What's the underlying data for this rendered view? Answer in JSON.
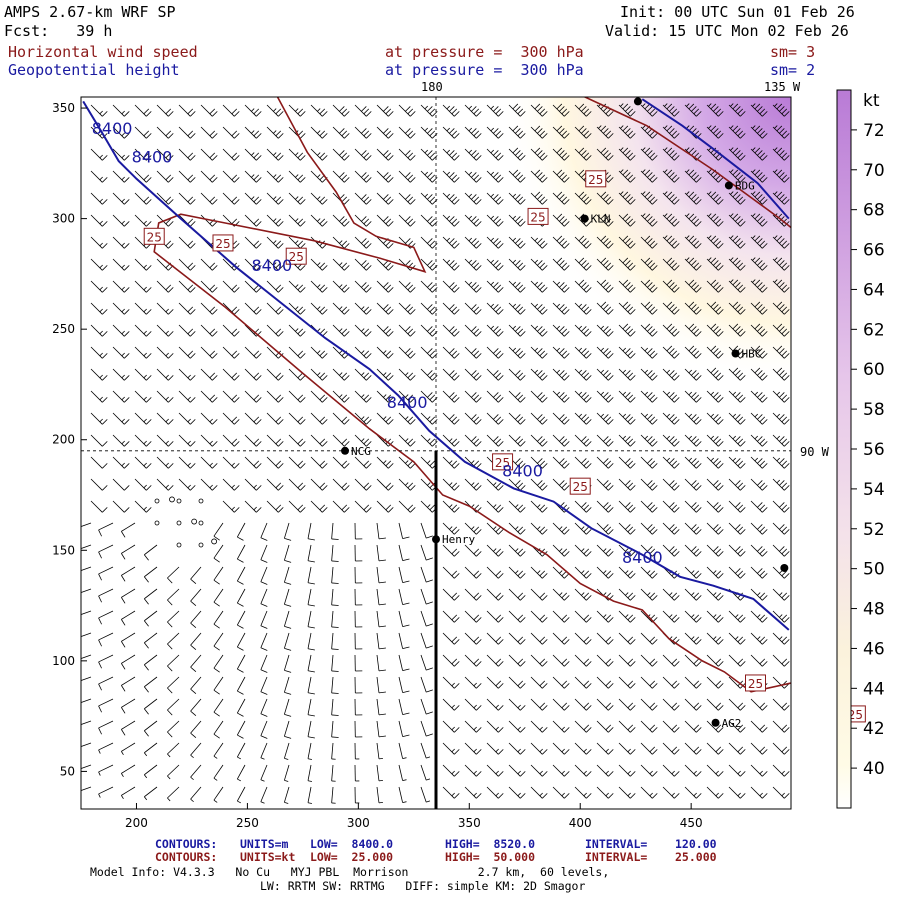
{
  "header": {
    "model_title": "AMPS 2.67-km WRF SP",
    "forecast": "Fcst:   39 h",
    "init": "Init: 00 UTC Sun 01 Feb 26",
    "valid": "Valid: 15 UTC Mon 02 Feb 26",
    "field1_name": "Horizontal wind speed",
    "field1_level": "at pressure =  300 hPa",
    "field1_sm": "sm= 3",
    "field2_name": "Geopotential height",
    "field2_level": "at pressure =  300 hPa",
    "field2_sm": "sm= 2"
  },
  "colors": {
    "wind_contour": "#8b1a1a",
    "height_contour": "#1a1aa0",
    "barbs": "#000000",
    "colorbar_low": "#fffbe6",
    "colorbar_high": "#b97bd6"
  },
  "map_labels": {
    "lon_180": "180",
    "lon_135w": "135 W",
    "lon_90w": "90 W"
  },
  "chart_data": {
    "type": "contour",
    "title": "Horizontal wind speed / Geopotential height at 300 hPa",
    "xlim": [
      175,
      495
    ],
    "ylim": [
      33,
      355
    ],
    "x_ticks": [
      200,
      250,
      300,
      350,
      400,
      450
    ],
    "y_ticks": [
      50,
      100,
      150,
      200,
      250,
      300,
      350
    ],
    "colorbar": {
      "unit": "kt",
      "min": 38,
      "max": 74,
      "ticks": [
        40,
        42,
        44,
        46,
        48,
        50,
        52,
        54,
        56,
        58,
        60,
        62,
        64,
        66,
        68,
        70,
        72
      ]
    },
    "wind_contour_label": "25",
    "wind_contours": [
      {
        "level": 25,
        "points": [
          [
            262,
            358
          ],
          [
            277,
            330
          ],
          [
            290,
            312
          ],
          [
            298,
            298
          ],
          [
            308,
            292
          ],
          [
            325,
            287
          ],
          [
            330,
            276
          ],
          [
            310,
            282
          ],
          [
            280,
            290
          ],
          [
            240,
            298
          ],
          [
            220,
            302
          ],
          [
            210,
            298
          ],
          [
            208,
            285
          ],
          [
            240,
            260
          ],
          [
            275,
            230
          ],
          [
            305,
            205
          ],
          [
            325,
            190
          ],
          [
            338,
            175
          ],
          [
            350,
            170
          ],
          [
            368,
            158
          ],
          [
            385,
            148
          ],
          [
            400,
            135
          ],
          [
            415,
            127
          ],
          [
            428,
            123
          ],
          [
            440,
            110
          ],
          [
            455,
            100
          ],
          [
            465,
            95
          ],
          [
            477,
            86
          ],
          [
            495,
            90
          ]
        ]
      },
      {
        "level": 25,
        "points": [
          [
            400,
            356
          ],
          [
            430,
            342
          ],
          [
            460,
            322
          ],
          [
            490,
            300
          ],
          [
            495,
            296
          ]
        ]
      }
    ],
    "wind_contour_label_positions": [
      [
        208,
        292
      ],
      [
        239,
        289
      ],
      [
        272,
        283
      ],
      [
        365,
        190
      ],
      [
        381,
        301
      ],
      [
        400,
        179
      ],
      [
        407,
        318
      ],
      [
        479,
        90
      ],
      [
        524,
        76
      ]
    ],
    "height_contour_label": "8400",
    "height_contours": [
      {
        "level": 8400,
        "points": [
          [
            176,
            353
          ],
          [
            185,
            338
          ],
          [
            192,
            326
          ],
          [
            200,
            318
          ],
          [
            220,
            300
          ],
          [
            245,
            278
          ],
          [
            265,
            262
          ],
          [
            285,
            246
          ],
          [
            305,
            232
          ],
          [
            318,
            220
          ],
          [
            332,
            204
          ],
          [
            348,
            190
          ],
          [
            370,
            178
          ],
          [
            388,
            172
          ],
          [
            405,
            160
          ],
          [
            428,
            148
          ],
          [
            445,
            138
          ],
          [
            460,
            134
          ],
          [
            478,
            128
          ],
          [
            494,
            114
          ]
        ]
      },
      {
        "level": 8400,
        "points": [
          [
            428,
            354
          ],
          [
            446,
            342
          ],
          [
            462,
            330
          ],
          [
            480,
            316
          ],
          [
            494,
            300
          ]
        ]
      }
    ],
    "height_label_positions": [
      [
        189,
        341
      ],
      [
        207,
        328
      ],
      [
        261,
        279
      ],
      [
        322,
        217
      ],
      [
        374,
        186
      ],
      [
        428,
        147
      ]
    ],
    "stations": [
      {
        "name": "",
        "x": 426,
        "y": 353
      },
      {
        "name": "BDG",
        "x": 467,
        "y": 315
      },
      {
        "name": "KLN",
        "x": 402,
        "y": 300
      },
      {
        "name": "HBC",
        "x": 470,
        "y": 239
      },
      {
        "name": "NCG",
        "x": 294,
        "y": 195
      },
      {
        "name": "Henry",
        "x": 335,
        "y": 155
      },
      {
        "name": "",
        "x": 492,
        "y": 142
      },
      {
        "name": "AG2",
        "x": 461,
        "y": 72
      }
    ],
    "calm_points": [
      [
        216,
        173
      ],
      [
        226,
        163
      ],
      [
        235,
        154
      ]
    ],
    "meridian_180": [
      [
        335,
        355
      ],
      [
        335,
        290
      ]
    ],
    "meridian_180_lower": [
      [
        335,
        195
      ],
      [
        335,
        33
      ]
    ],
    "meridian_90w_y": 195
  },
  "footer": {
    "contours_blue_label": "CONTOURS:",
    "contours_blue_units": "UNITS=m",
    "contours_blue_low": "LOW=  8400.0",
    "contours_blue_high": "HIGH=  8520.0",
    "contours_blue_interval": "INTERVAL=    120.00",
    "contours_red_label": "CONTOURS:",
    "contours_red_units": "UNITS=kt",
    "contours_red_low": "LOW=  25.000",
    "contours_red_high": "HIGH=  50.000",
    "contours_red_interval": "INTERVAL=    25.000",
    "model_info": "Model Info: V4.3.3   No Cu   MYJ PBL  Morrison          2.7 km,  60 levels,",
    "physics": "LW: RRTM SW: RRTMG   DIFF: simple KM: 2D Smagor"
  }
}
